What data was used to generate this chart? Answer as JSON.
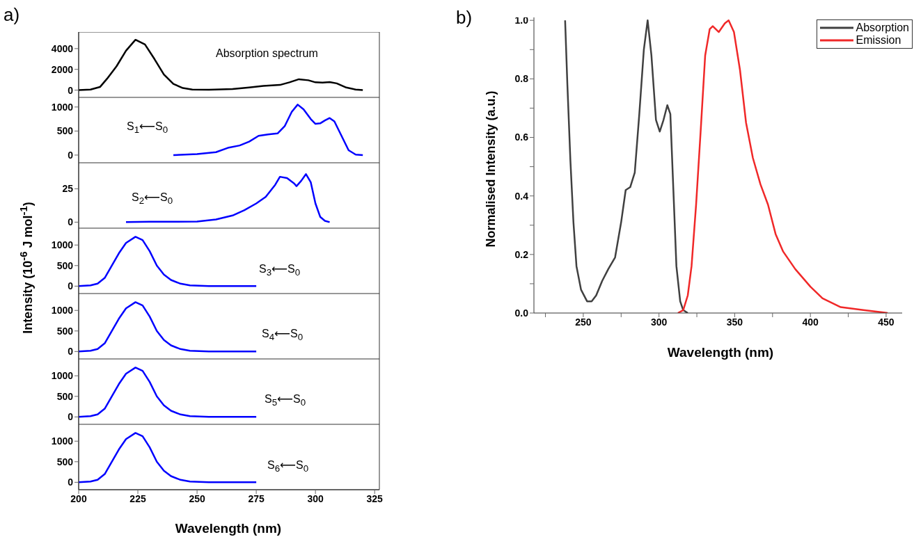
{
  "chart_data": [
    {
      "type": "line",
      "title": "a)",
      "color": "#000000",
      "xlim": [
        200,
        327
      ],
      "ylim": [
        -700,
        5600
      ],
      "yticks": [
        0,
        2000,
        4000
      ],
      "tick_labels": "y",
      "annotations": [
        "Absorption spectrum"
      ],
      "x": [
        200,
        205,
        209,
        212,
        216,
        220,
        224,
        228,
        232,
        236,
        240,
        244,
        248,
        255,
        265,
        272,
        278,
        285,
        289,
        293,
        297,
        300,
        303,
        306,
        309,
        313,
        317,
        320
      ],
      "values": [
        0,
        50,
        300,
        1100,
        2300,
        3800,
        4850,
        4400,
        3000,
        1500,
        600,
        200,
        60,
        30,
        100,
        250,
        400,
        500,
        750,
        1050,
        950,
        750,
        720,
        780,
        650,
        250,
        50,
        0
      ]
    },
    {
      "type": "line",
      "color": "#0000ff",
      "xlim": [
        200,
        327
      ],
      "ylim": [
        -160,
        1200
      ],
      "yticks": [
        0,
        500,
        1000
      ],
      "tick_labels": "y",
      "annotations": [
        "S$_{1}$⟵S$_{0}$"
      ],
      "x": [
        240,
        250,
        258,
        263,
        268,
        272,
        276,
        280,
        284,
        287,
        290,
        292.5,
        295,
        298,
        300,
        302,
        304,
        306,
        308,
        311,
        314,
        317,
        320
      ],
      "values": [
        0,
        20,
        60,
        150,
        200,
        280,
        400,
        430,
        450,
        600,
        900,
        1050,
        950,
        750,
        650,
        660,
        720,
        770,
        700,
        400,
        100,
        10,
        0
      ]
    },
    {
      "type": "line",
      "color": "#0000ff",
      "xlim": [
        200,
        327
      ],
      "ylim": [
        -4.5,
        44.5
      ],
      "yticks": [
        0,
        25
      ],
      "tick_labels": "y",
      "annotations": [
        "S$_{2}$⟵S$_{0}$"
      ],
      "x": [
        220,
        230,
        240,
        250,
        258,
        265,
        270,
        275,
        279,
        283,
        285,
        288,
        291,
        292,
        294,
        296,
        298,
        300,
        302,
        304,
        306
      ],
      "values": [
        0,
        0.3,
        0.3,
        0.5,
        2,
        5,
        9,
        14,
        19,
        28,
        34,
        33,
        29,
        27,
        31,
        36,
        30,
        14,
        4,
        1,
        0
      ]
    },
    {
      "type": "line",
      "color": "#0000ff",
      "xlim": [
        200,
        327
      ],
      "ylim": [
        -180,
        1410
      ],
      "yticks": [
        0,
        500,
        1000
      ],
      "tick_labels": "y",
      "ylabel": "Intensity (10$^{-6}$ J mol$^{-1}$)",
      "annotations": [
        "S$_{3}$⟵S$_{0}$"
      ],
      "x": [
        200,
        205,
        208,
        211,
        214,
        217,
        220,
        224,
        227,
        230,
        233,
        236,
        239,
        243,
        247,
        255,
        275
      ],
      "values": [
        0,
        20,
        60,
        200,
        500,
        800,
        1050,
        1200,
        1120,
        850,
        500,
        280,
        150,
        60,
        20,
        0,
        0
      ]
    },
    {
      "type": "line",
      "color": "#0000ff",
      "xlim": [
        200,
        327
      ],
      "ylim": [
        -180,
        1410
      ],
      "yticks": [
        0,
        500,
        1000
      ],
      "tick_labels": "y",
      "annotations": [
        "S$_{4}$⟵S$_{0}$"
      ],
      "x": [
        200,
        205,
        208,
        211,
        214,
        217,
        220,
        224,
        227,
        230,
        233,
        236,
        239,
        243,
        247,
        255,
        275
      ],
      "values": [
        0,
        20,
        60,
        200,
        500,
        800,
        1050,
        1200,
        1120,
        850,
        500,
        280,
        150,
        60,
        20,
        0,
        0
      ]
    },
    {
      "type": "line",
      "color": "#0000ff",
      "xlim": [
        200,
        327
      ],
      "ylim": [
        -180,
        1410
      ],
      "yticks": [
        0,
        500,
        1000
      ],
      "tick_labels": "y",
      "annotations": [
        "S$_{5}$⟵S$_{0}$"
      ],
      "x": [
        200,
        205,
        208,
        211,
        214,
        217,
        220,
        224,
        227,
        230,
        233,
        236,
        239,
        243,
        247,
        255,
        275
      ],
      "values": [
        0,
        20,
        60,
        200,
        500,
        800,
        1050,
        1200,
        1120,
        850,
        500,
        280,
        150,
        60,
        20,
        0,
        0
      ]
    },
    {
      "type": "line",
      "color": "#0000ff",
      "xlim": [
        200,
        327
      ],
      "xticks": [
        200,
        225,
        250,
        275,
        300,
        325
      ],
      "ylim": [
        -180,
        1410
      ],
      "yticks": [
        0,
        500,
        1000
      ],
      "xlabel": "Wavelength (nm)",
      "annotations": [
        "S$_{6}$⟵S$_{0}$"
      ],
      "x": [
        200,
        205,
        208,
        211,
        214,
        217,
        220,
        224,
        227,
        230,
        233,
        236,
        239,
        243,
        247,
        255,
        275
      ],
      "values": [
        0,
        20,
        60,
        200,
        500,
        800,
        1050,
        1200,
        1120,
        850,
        500,
        280,
        150,
        60,
        20,
        0,
        0
      ]
    },
    {
      "type": "line",
      "title": "b)",
      "xlabel": "Wavelength (nm)",
      "ylabel": "Normalised Intensity (a.u.)",
      "legend": "top right",
      "xlim": [
        217.4,
        460.6
      ],
      "ylim": [
        0,
        1.01
      ],
      "xticks": [
        {
          "value": 225,
          "label": null
        },
        250,
        {
          "value": 275,
          "label": null
        },
        300,
        {
          "value": 325,
          "label": null
        },
        350,
        {
          "value": 375,
          "label": null
        },
        400,
        {
          "value": 425,
          "label": null
        },
        450
      ],
      "yticks": [
        {
          "value": 0,
          "label": "0.0"
        },
        {
          "value": 0.1,
          "label": null
        },
        0.2,
        {
          "value": 0.3,
          "label": null
        },
        0.4,
        {
          "value": 0.5,
          "label": null
        },
        0.6,
        {
          "value": 0.7,
          "label": null
        },
        0.8,
        {
          "value": 0.9,
          "label": null
        },
        {
          "value": 1,
          "label": "1.0"
        }
      ],
      "series": [
        {
          "name": "Absorption",
          "color": "#404040",
          "x": [
            238,
            239.5,
            241.5,
            243.5,
            245.5,
            248.5,
            252.5,
            255.5,
            258.5,
            262.5,
            266.5,
            271,
            275,
            278,
            281,
            284,
            287,
            290,
            292.5,
            295,
            298,
            300.5,
            303,
            305.5,
            307.5,
            309.5,
            311.5,
            314,
            316,
            319
          ],
          "values": [
            1.0,
            0.78,
            0.52,
            0.31,
            0.16,
            0.08,
            0.04,
            0.04,
            0.06,
            0.11,
            0.15,
            0.19,
            0.31,
            0.42,
            0.43,
            0.48,
            0.68,
            0.9,
            1.0,
            0.88,
            0.66,
            0.62,
            0.66,
            0.71,
            0.68,
            0.42,
            0.16,
            0.04,
            0.01,
            0
          ]
        },
        {
          "name": "Emission",
          "color": "#f02828",
          "x": [
            312.5,
            316,
            319,
            321.5,
            324.5,
            327.5,
            330.5,
            333.5,
            335.5,
            339.5,
            343.5,
            346,
            349.5,
            353.5,
            357.5,
            362,
            367,
            372,
            377,
            382,
            390,
            400,
            408,
            420,
            435,
            451
          ],
          "values": [
            0,
            0.01,
            0.06,
            0.16,
            0.37,
            0.62,
            0.88,
            0.97,
            0.98,
            0.96,
            0.99,
            1.0,
            0.96,
            0.83,
            0.65,
            0.53,
            0.44,
            0.37,
            0.27,
            0.21,
            0.15,
            0.09,
            0.05,
            0.02,
            0.01,
            0
          ]
        }
      ]
    }
  ]
}
